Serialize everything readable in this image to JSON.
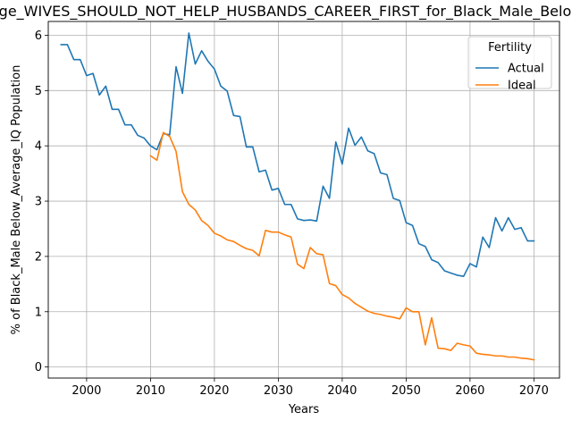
{
  "chart_data": {
    "type": "line",
    "title": "Percentage_WIVES_SHOULD_NOT_HELP_HUSBANDS_CAREER_FIRST_for_Black_Male_Below_Average_IQ",
    "xlabel": "Years",
    "ylabel": "% of Black_Male Below_Average_IQ Population",
    "xlim": [
      1994,
      2074
    ],
    "ylim": [
      -0.2,
      6.25
    ],
    "xticks": [
      2000,
      2010,
      2020,
      2030,
      2040,
      2050,
      2060,
      2070
    ],
    "yticks": [
      0,
      1,
      2,
      3,
      4,
      5,
      6
    ],
    "grid": true,
    "legend": {
      "title": "Fertility",
      "placement": "top-right"
    },
    "series": [
      {
        "name": "Actual",
        "color": "#1f77b4",
        "x": [
          1996,
          1997,
          1998,
          1999,
          2000,
          2001,
          2002,
          2003,
          2004,
          2005,
          2006,
          2007,
          2008,
          2009,
          2010,
          2011,
          2012,
          2013,
          2014,
          2015,
          2016,
          2017,
          2018,
          2019,
          2020,
          2021,
          2022,
          2023,
          2024,
          2025,
          2026,
          2027,
          2028,
          2029,
          2030,
          2031,
          2032,
          2033,
          2034,
          2035,
          2036,
          2037,
          2038,
          2039,
          2040,
          2041,
          2042,
          2043,
          2044,
          2045,
          2046,
          2047,
          2048,
          2049,
          2050,
          2051,
          2052,
          2053,
          2054,
          2055,
          2056,
          2057,
          2058,
          2059,
          2060,
          2061,
          2062,
          2063,
          2064,
          2065,
          2066,
          2067,
          2068,
          2069,
          2070
        ],
        "values": [
          5.83,
          5.83,
          5.56,
          5.56,
          5.27,
          5.31,
          4.92,
          5.08,
          4.66,
          4.66,
          4.38,
          4.38,
          4.19,
          4.14,
          4.0,
          3.93,
          4.22,
          4.2,
          5.43,
          4.95,
          6.04,
          5.48,
          5.72,
          5.53,
          5.39,
          5.08,
          4.99,
          4.55,
          4.53,
          3.98,
          3.98,
          3.53,
          3.56,
          3.2,
          3.23,
          2.94,
          2.94,
          2.68,
          2.65,
          2.66,
          2.64,
          3.27,
          3.05,
          4.07,
          3.67,
          4.32,
          4.01,
          4.16,
          3.91,
          3.86,
          3.51,
          3.48,
          3.05,
          3.01,
          2.61,
          2.56,
          2.23,
          2.18,
          1.94,
          1.89,
          1.74,
          1.7,
          1.66,
          1.64,
          1.87,
          1.81,
          2.35,
          2.16,
          2.7,
          2.46,
          2.7,
          2.49,
          2.52,
          2.28,
          2.28
        ]
      },
      {
        "name": "Ideal",
        "color": "#ff7f0e",
        "x": [
          2010,
          2011,
          2012,
          2013,
          2014,
          2015,
          2016,
          2017,
          2018,
          2019,
          2020,
          2021,
          2022,
          2023,
          2024,
          2025,
          2026,
          2027,
          2028,
          2029,
          2030,
          2031,
          2032,
          2033,
          2034,
          2035,
          2036,
          2037,
          2038,
          2039,
          2040,
          2041,
          2042,
          2043,
          2044,
          2045,
          2046,
          2047,
          2048,
          2049,
          2050,
          2051,
          2052,
          2053,
          2054,
          2055,
          2056,
          2057,
          2058,
          2059,
          2060,
          2061,
          2062,
          2063,
          2064,
          2065,
          2066,
          2067,
          2068,
          2069,
          2070
        ],
        "values": [
          3.82,
          3.74,
          4.24,
          4.17,
          3.9,
          3.17,
          2.94,
          2.84,
          2.65,
          2.56,
          2.42,
          2.37,
          2.3,
          2.27,
          2.2,
          2.14,
          2.11,
          2.01,
          2.47,
          2.44,
          2.44,
          2.39,
          2.35,
          1.86,
          1.78,
          2.16,
          2.05,
          2.03,
          1.51,
          1.47,
          1.31,
          1.25,
          1.15,
          1.08,
          1.01,
          0.97,
          0.95,
          0.92,
          0.9,
          0.87,
          1.07,
          1.0,
          1.0,
          0.4,
          0.89,
          0.34,
          0.33,
          0.3,
          0.43,
          0.4,
          0.38,
          0.25,
          0.23,
          0.22,
          0.2,
          0.2,
          0.18,
          0.18,
          0.16,
          0.15,
          0.13
        ]
      }
    ]
  }
}
